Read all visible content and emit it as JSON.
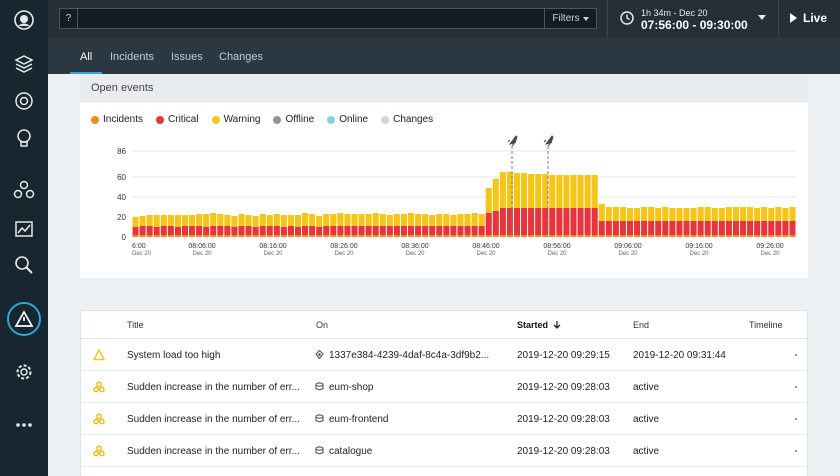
{
  "search": {
    "help_label": "?",
    "value": "",
    "filters_label": "Filters"
  },
  "timeframe": {
    "duration_label": "1h 34m - Dec 20",
    "range_label": "07:56:00 - 09:30:00"
  },
  "live_label": "Live",
  "tabs": [
    {
      "label": "All",
      "selected": true
    },
    {
      "label": "Incidents",
      "selected": false
    },
    {
      "label": "Issues",
      "selected": false
    },
    {
      "label": "Changes",
      "selected": false
    }
  ],
  "open_events": {
    "title": "Open events",
    "legend": [
      {
        "label": "Incidents",
        "color": "#f08c1e"
      },
      {
        "label": "Critical",
        "color": "#e8343c"
      },
      {
        "label": "Warning",
        "color": "#f5c518"
      },
      {
        "label": "Offline",
        "color": "#8f979d"
      },
      {
        "label": "Online",
        "color": "#7fd3e6"
      },
      {
        "label": "Changes",
        "color": "#d3d6d9"
      }
    ]
  },
  "chart_data": {
    "type": "bar",
    "stacked": true,
    "yticks": [
      0,
      20,
      40,
      60,
      86
    ],
    "ylim": [
      0,
      86
    ],
    "xticks": [
      {
        "time": "08:06:00",
        "date": "Dec 20"
      },
      {
        "time": "08:16:00",
        "date": "Dec 20"
      },
      {
        "time": "08:26:00",
        "date": "Dec 20"
      },
      {
        "time": "08:36:00",
        "date": "Dec 20"
      },
      {
        "time": "08:46:00",
        "date": "Dec 20"
      },
      {
        "time": "08:56:00",
        "date": "Dec 20"
      },
      {
        "time": "09:06:00",
        "date": "Dec 20"
      },
      {
        "time": "09:16:00",
        "date": "Dec 20"
      },
      {
        "time": "09:26:00",
        "date": "Dec 20"
      }
    ],
    "first_tick_partial": {
      "time": "6:00",
      "date": "Dec 20"
    },
    "series": [
      {
        "name": "Incidents",
        "color": "#f08c1e",
        "values": [
          2,
          2,
          2,
          2,
          2,
          2,
          2,
          2,
          2,
          2,
          2,
          2,
          2,
          2,
          2,
          2,
          2,
          2,
          2,
          2,
          2,
          2,
          2,
          2,
          2,
          2,
          2,
          2,
          2,
          2,
          2,
          2,
          2,
          2,
          2,
          2,
          2,
          2,
          2,
          2,
          2,
          2,
          2,
          2,
          2,
          2,
          2,
          2,
          2,
          2,
          2,
          2,
          2,
          2,
          2,
          2,
          2,
          2,
          2,
          2,
          2,
          2,
          2,
          2,
          2,
          2,
          2,
          2,
          2,
          2,
          2,
          2,
          2,
          2,
          2,
          2,
          2,
          2,
          2,
          2,
          2,
          2,
          2,
          2,
          2,
          2,
          2,
          2,
          2,
          2,
          2,
          2,
          2,
          2
        ]
      },
      {
        "name": "Critical",
        "color": "#e8343c",
        "values": [
          8,
          9,
          9,
          8,
          9,
          9,
          8,
          9,
          9,
          9,
          8,
          9,
          9,
          9,
          8,
          9,
          9,
          8,
          9,
          9,
          9,
          8,
          9,
          8,
          9,
          9,
          8,
          9,
          9,
          9,
          9,
          9,
          9,
          9,
          9,
          9,
          9,
          9,
          9,
          9,
          9,
          9,
          9,
          9,
          9,
          9,
          9,
          9,
          9,
          9,
          22,
          24,
          27,
          27,
          27,
          27,
          27,
          27,
          27,
          27,
          27,
          27,
          27,
          27,
          27,
          27,
          14,
          14,
          14,
          14,
          14,
          14,
          14,
          14,
          14,
          14,
          14,
          14,
          14,
          14,
          14,
          14,
          14,
          14,
          14,
          14,
          14,
          14,
          14,
          14,
          14,
          14,
          14,
          14
        ]
      },
      {
        "name": "Warning",
        "color": "#f5c518",
        "values": [
          10,
          10,
          11,
          12,
          11,
          11,
          12,
          11,
          11,
          12,
          13,
          13,
          12,
          11,
          11,
          12,
          11,
          11,
          12,
          11,
          12,
          12,
          11,
          12,
          13,
          12,
          11,
          12,
          12,
          13,
          12,
          12,
          12,
          12,
          13,
          12,
          11,
          12,
          12,
          13,
          12,
          12,
          11,
          12,
          12,
          11,
          12,
          12,
          13,
          12,
          25,
          32,
          36,
          36,
          35,
          35,
          34,
          34,
          34,
          33,
          33,
          33,
          33,
          33,
          33,
          33,
          17,
          14,
          14,
          14,
          13,
          13,
          14,
          14,
          13,
          14,
          13,
          13,
          13,
          13,
          14,
          14,
          13,
          13,
          14,
          14,
          14,
          14,
          13,
          14,
          13,
          14,
          13,
          14
        ]
      }
    ],
    "annotations": [
      "change-marker",
      "change-marker"
    ]
  },
  "table": {
    "columns": {
      "title": "Title",
      "on": "On",
      "started": "Started",
      "end": "End",
      "timeline": "Timeline"
    },
    "rows": [
      {
        "type": "warning",
        "title": "System load too high",
        "on": "1337e384-4239-4daf-8c4a-3df9b2...",
        "on_icon": "host",
        "started": "2019-12-20 09:29:15",
        "end": "2019-12-20 09:31:44"
      },
      {
        "type": "issue",
        "title": "Sudden increase in the number of err...",
        "on": "eum-shop",
        "on_icon": "app",
        "started": "2019-12-20 09:28:03",
        "end": "active"
      },
      {
        "type": "issue",
        "title": "Sudden increase in the number of err...",
        "on": "eum-frontend",
        "on_icon": "app",
        "started": "2019-12-20 09:28:03",
        "end": "active"
      },
      {
        "type": "issue",
        "title": "Sudden increase in the number of err...",
        "on": "catalogue",
        "on_icon": "app",
        "started": "2019-12-20 09:28:03",
        "end": "active"
      }
    ]
  }
}
